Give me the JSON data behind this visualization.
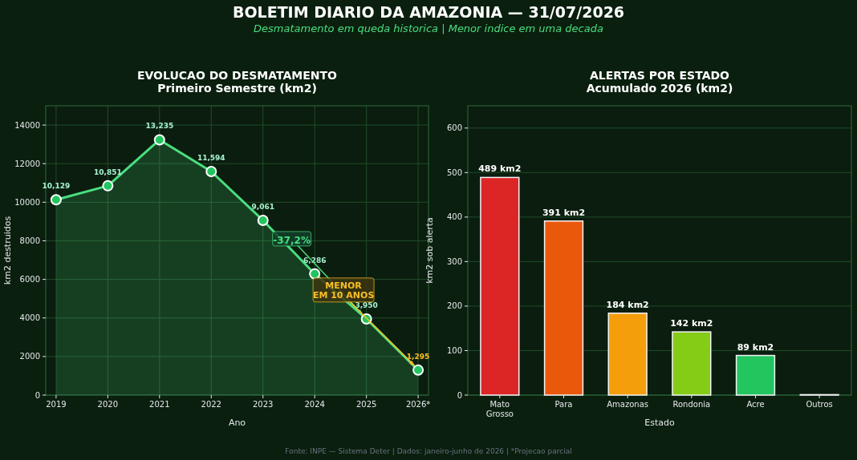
{
  "chart_data": [
    {
      "type": "area",
      "title": "EVOLUCAO DO DESMATAMENTO",
      "subtitle": "Primeiro Semestre (km2)",
      "xlabel": "Ano",
      "ylabel": "km2 destruidos",
      "categories": [
        "2019",
        "2020",
        "2021",
        "2022",
        "2023",
        "2024",
        "2025",
        "2026*"
      ],
      "series": [
        {
          "color": "#4ade80",
          "values": [
            10129,
            10851,
            13235,
            11594,
            9061,
            6286,
            3950,
            1295
          ]
        }
      ],
      "value_labels": [
        "10,129",
        "10,851",
        "13,235",
        "11,594",
        "9,061",
        "6,286",
        "3,950",
        "1,295"
      ],
      "ylim": [
        0,
        15000
      ],
      "yticks": [
        0,
        2000,
        4000,
        6000,
        8000,
        10000,
        12000,
        14000
      ],
      "grid": true,
      "marker": "circle",
      "annotations": [
        "BOLETIM DIARIO DA AMAZONIA — 31/07/2026",
        "Desmatamento em queda historica | Menor indice em uma decada",
        {
          "text": "-37,2%",
          "x": "2025",
          "y": 3950
        },
        {
          "text": "MENOR\nEM 10 ANOS",
          "x": "2026*",
          "y": 1295
        },
        "Fonte: INPE — Sistema Deter | Dados: janeiro-junho de 2026 | *Projecao parcial"
      ]
    },
    {
      "type": "bar",
      "title": "ALERTAS POR ESTADO",
      "subtitle": "Acumulado 2026 (km2)",
      "xlabel": "Estado",
      "ylabel": "km2 sob alerta",
      "categories": [
        "Mato\nGrosso",
        "Para",
        "Amazonas",
        "Rondonia",
        "Acre",
        "Outros"
      ],
      "values": [
        489,
        391,
        184,
        142,
        89,
        1
      ],
      "colors": [
        "#dc2626",
        "#ea580c",
        "#f59e0b",
        "#84cc16",
        "#22c55e",
        "#374151"
      ],
      "value_labels": [
        "489 km2",
        "391 km2",
        "184 km2",
        "142 km2",
        "89 km2",
        null
      ],
      "ylim": [
        0,
        650
      ],
      "yticks": [
        0,
        100,
        200,
        300,
        400,
        500,
        600
      ],
      "grid": "y"
    }
  ]
}
